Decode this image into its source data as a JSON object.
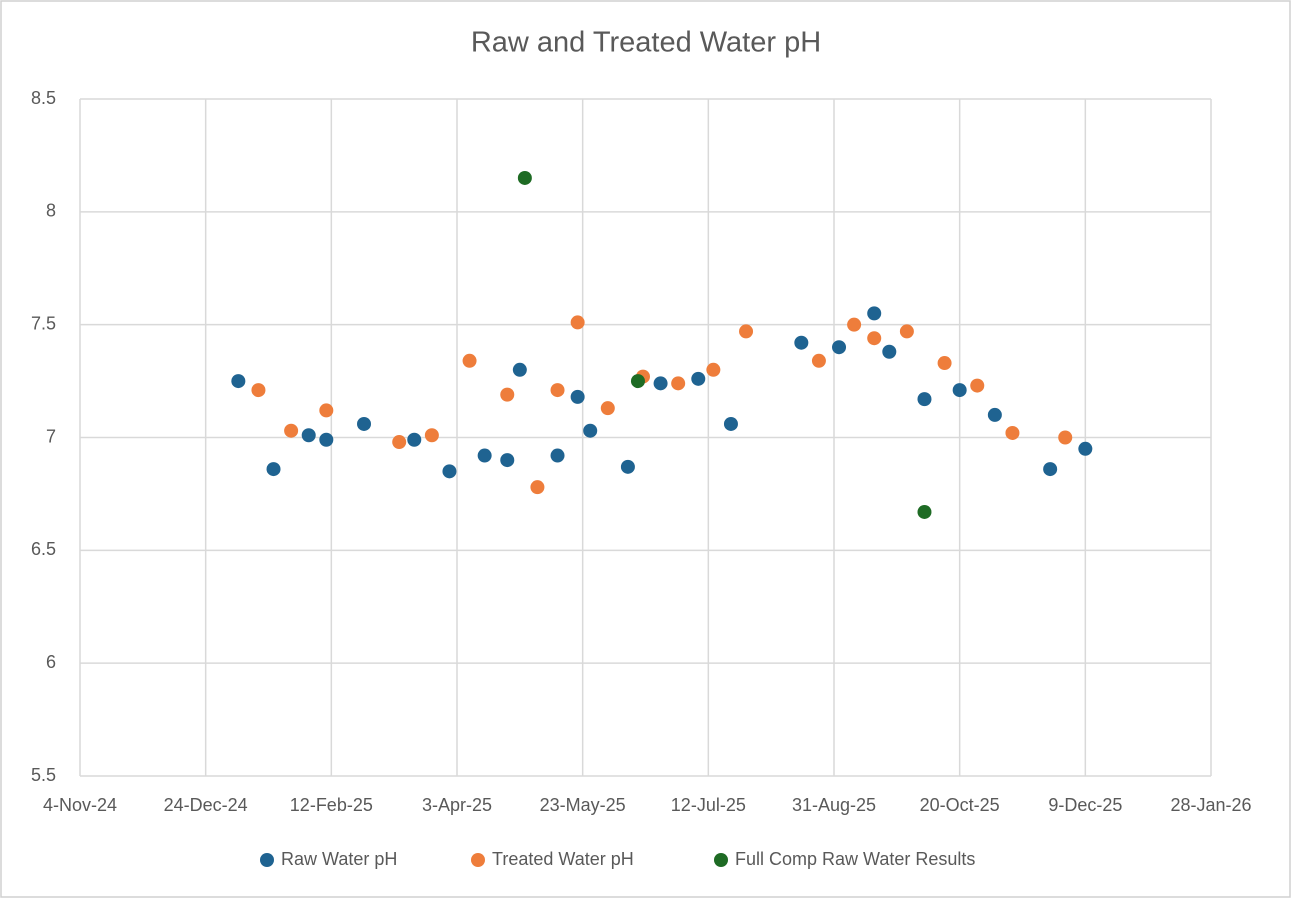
{
  "chart_data": {
    "type": "scatter",
    "title": "Raw and Treated Water pH",
    "xlim": [
      "2024-11-04",
      "2026-01-28"
    ],
    "xticks": [
      {
        "value": "2024-11-04",
        "label": "4-Nov-24"
      },
      {
        "value": "2024-12-24",
        "label": "24-Dec-24"
      },
      {
        "value": "2025-02-12",
        "label": "12-Feb-25"
      },
      {
        "value": "2025-04-03",
        "label": "3-Apr-25"
      },
      {
        "value": "2025-05-23",
        "label": "23-May-25"
      },
      {
        "value": "2025-07-12",
        "label": "12-Jul-25"
      },
      {
        "value": "2025-08-31",
        "label": "31-Aug-25"
      },
      {
        "value": "2025-10-20",
        "label": "20-Oct-25"
      },
      {
        "value": "2025-12-09",
        "label": "9-Dec-25"
      },
      {
        "value": "2026-01-28",
        "label": "28-Jan-26"
      }
    ],
    "ylim": [
      5.5,
      8.5
    ],
    "yticks": [
      5.5,
      6,
      6.5,
      7,
      7.5,
      8,
      8.5
    ],
    "grid": true,
    "legend": "bottom",
    "series": [
      {
        "name": "Raw Water pH",
        "color": "#1f6391",
        "x": [
          "2025-01-06",
          "2025-01-20",
          "2025-02-03",
          "2025-02-10",
          "2025-02-25",
          "2025-03-17",
          "2025-03-31",
          "2025-04-14",
          "2025-04-23",
          "2025-04-28",
          "2025-05-13",
          "2025-05-21",
          "2025-05-26",
          "2025-06-10",
          "2025-06-23",
          "2025-07-08",
          "2025-07-21",
          "2025-08-18",
          "2025-09-02",
          "2025-09-16",
          "2025-09-22",
          "2025-10-06",
          "2025-10-20",
          "2025-11-03",
          "2025-11-25",
          "2025-12-09"
        ],
        "values": [
          7.25,
          6.86,
          7.01,
          6.99,
          7.06,
          6.99,
          6.85,
          6.92,
          6.9,
          7.3,
          6.92,
          7.18,
          7.03,
          6.87,
          7.24,
          7.26,
          7.06,
          7.42,
          7.4,
          7.55,
          7.38,
          7.17,
          7.21,
          7.1,
          6.86,
          6.95
        ]
      },
      {
        "name": "Treated Water pH",
        "color": "#ee7d3b",
        "x": [
          "2025-01-14",
          "2025-01-27",
          "2025-02-10",
          "2025-03-11",
          "2025-03-24",
          "2025-04-08",
          "2025-04-23",
          "2025-05-05",
          "2025-05-13",
          "2025-05-21",
          "2025-06-02",
          "2025-06-16",
          "2025-06-30",
          "2025-07-14",
          "2025-07-27",
          "2025-08-25",
          "2025-09-08",
          "2025-09-16",
          "2025-09-29",
          "2025-10-14",
          "2025-10-27",
          "2025-11-10",
          "2025-12-01"
        ],
        "values": [
          7.21,
          7.03,
          7.12,
          6.98,
          7.01,
          7.34,
          7.19,
          6.78,
          7.21,
          7.51,
          7.13,
          7.27,
          7.24,
          7.3,
          7.47,
          7.34,
          7.5,
          7.44,
          7.47,
          7.33,
          7.23,
          7.02,
          7.0
        ]
      },
      {
        "name": "Full Comp Raw Water Results",
        "color": "#1e6b24",
        "x": [
          "2025-04-30",
          "2025-06-14",
          "2025-10-06"
        ],
        "values": [
          8.15,
          7.25,
          6.67
        ]
      }
    ]
  }
}
